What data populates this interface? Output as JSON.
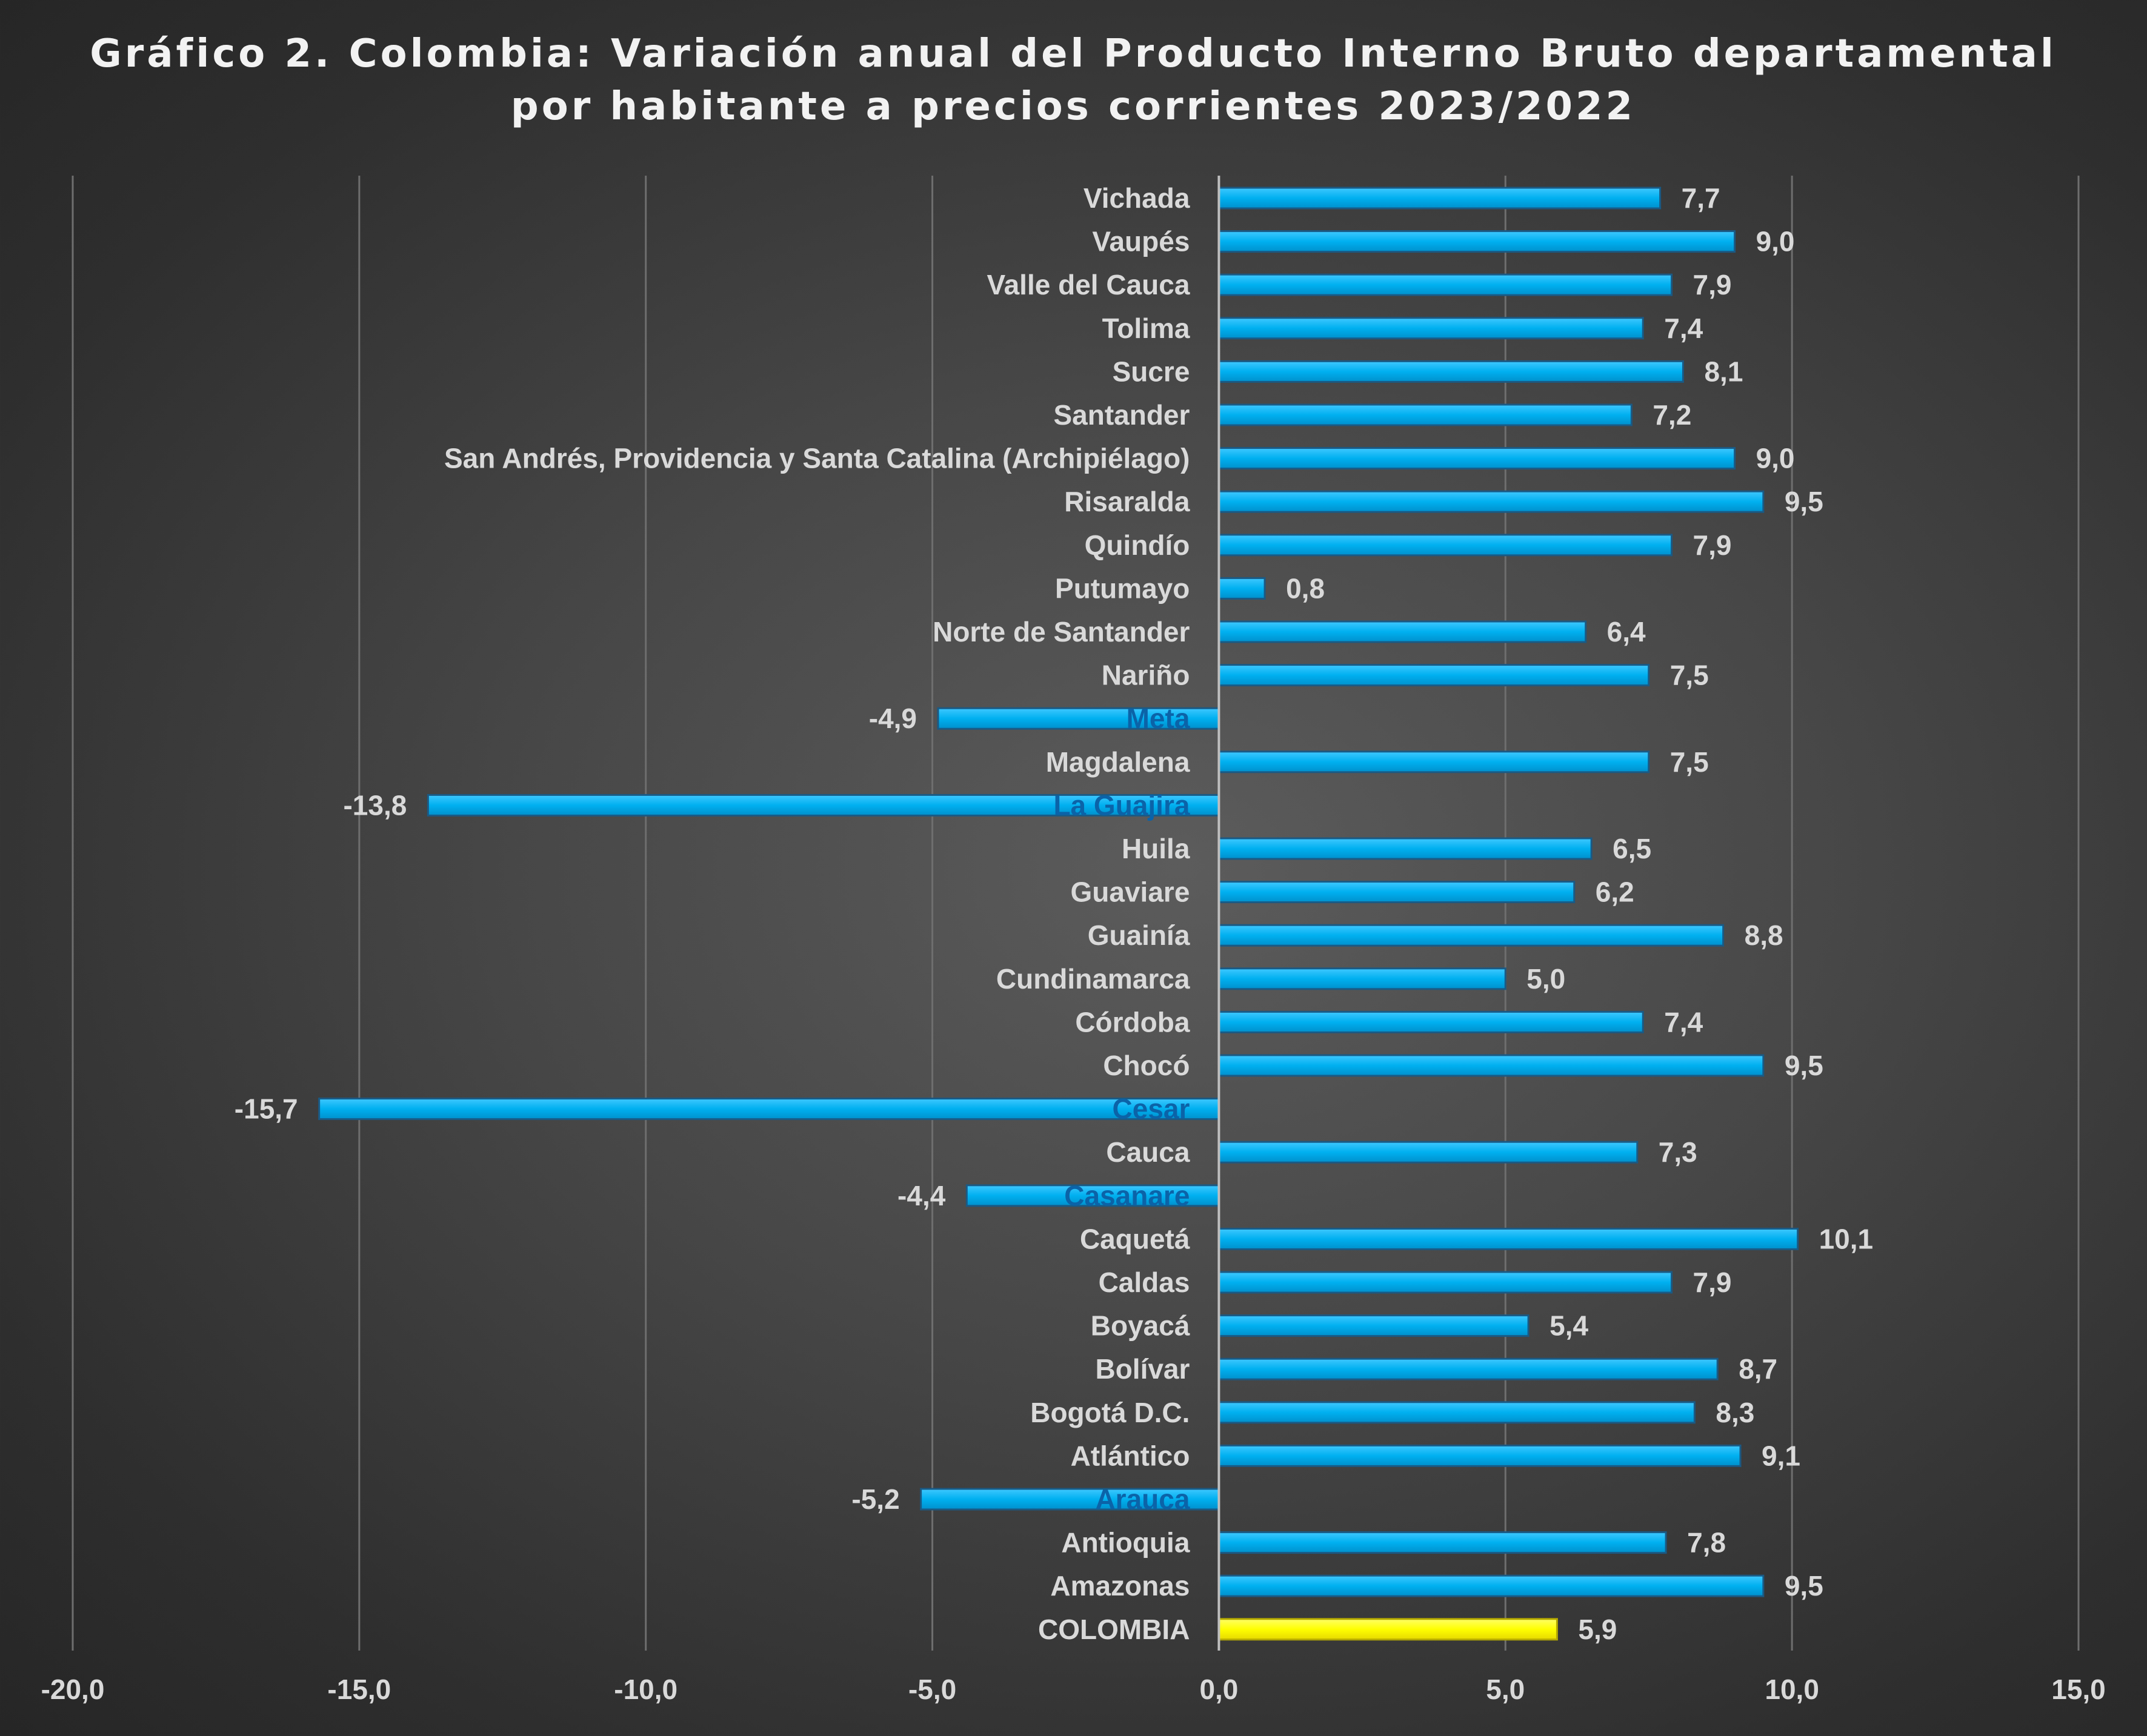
{
  "chart_data": {
    "type": "bar",
    "orientation": "horizontal",
    "title_lines": [
      "Gráfico 2. Colombia: Variación anual del Producto Interno Bruto departamental",
      "por habitante a precios corrientes 2023/2022"
    ],
    "xlim": [
      -20,
      15
    ],
    "xticks": [
      -20,
      -15,
      -10,
      -5,
      0,
      5,
      10,
      15
    ],
    "xtick_labels": [
      "-20,0",
      "-15,0",
      "-10,0",
      "-5,0",
      "0,0",
      "5,0",
      "10,0",
      "15,0"
    ],
    "grid": "vertical",
    "legend": "none",
    "bar_color": "#00b0f0",
    "highlight_color": "#ffff00",
    "highlight_category": "COLOMBIA",
    "categories": [
      "Vichada",
      "Vaupés",
      "Valle del Cauca",
      "Tolima",
      "Sucre",
      "Santander",
      "San Andrés, Providencia y Santa Catalina (Archipiélago)",
      "Risaralda",
      "Quindío",
      "Putumayo",
      "Norte de Santander",
      "Nariño",
      "Meta",
      "Magdalena",
      "La Guajira",
      "Huila",
      "Guaviare",
      "Guainía",
      "Cundinamarca",
      "Córdoba",
      "Chocó",
      "Cesar",
      "Cauca",
      "Casanare",
      "Caquetá",
      "Caldas",
      "Boyacá",
      "Bolívar",
      "Bogotá D.C.",
      "Atlántico",
      "Arauca",
      "Antioquia",
      "Amazonas",
      "COLOMBIA"
    ],
    "values": [
      7.7,
      9.0,
      7.9,
      7.4,
      8.1,
      7.2,
      9.0,
      9.5,
      7.9,
      0.8,
      6.4,
      7.5,
      -4.9,
      7.5,
      -13.8,
      6.5,
      6.2,
      8.8,
      5.0,
      7.4,
      9.5,
      -15.7,
      7.3,
      -4.4,
      10.1,
      7.9,
      5.4,
      8.7,
      8.3,
      9.1,
      -5.2,
      7.8,
      9.5,
      5.9
    ],
    "value_labels": [
      "7,7",
      "9,0",
      "7,9",
      "7,4",
      "8,1",
      "7,2",
      "9,0",
      "9,5",
      "7,9",
      "0,8",
      "6,4",
      "7,5",
      "-4,9",
      "7,5",
      "-13,8",
      "6,5",
      "6,2",
      "8,8",
      "5,0",
      "7,4",
      "9,5",
      "-15,7",
      "7,3",
      "-4,4",
      "10,1",
      "7,9",
      "5,4",
      "8,7",
      "8,3",
      "9,1",
      "-5,2",
      "7,8",
      "9,5",
      "5,9"
    ]
  }
}
